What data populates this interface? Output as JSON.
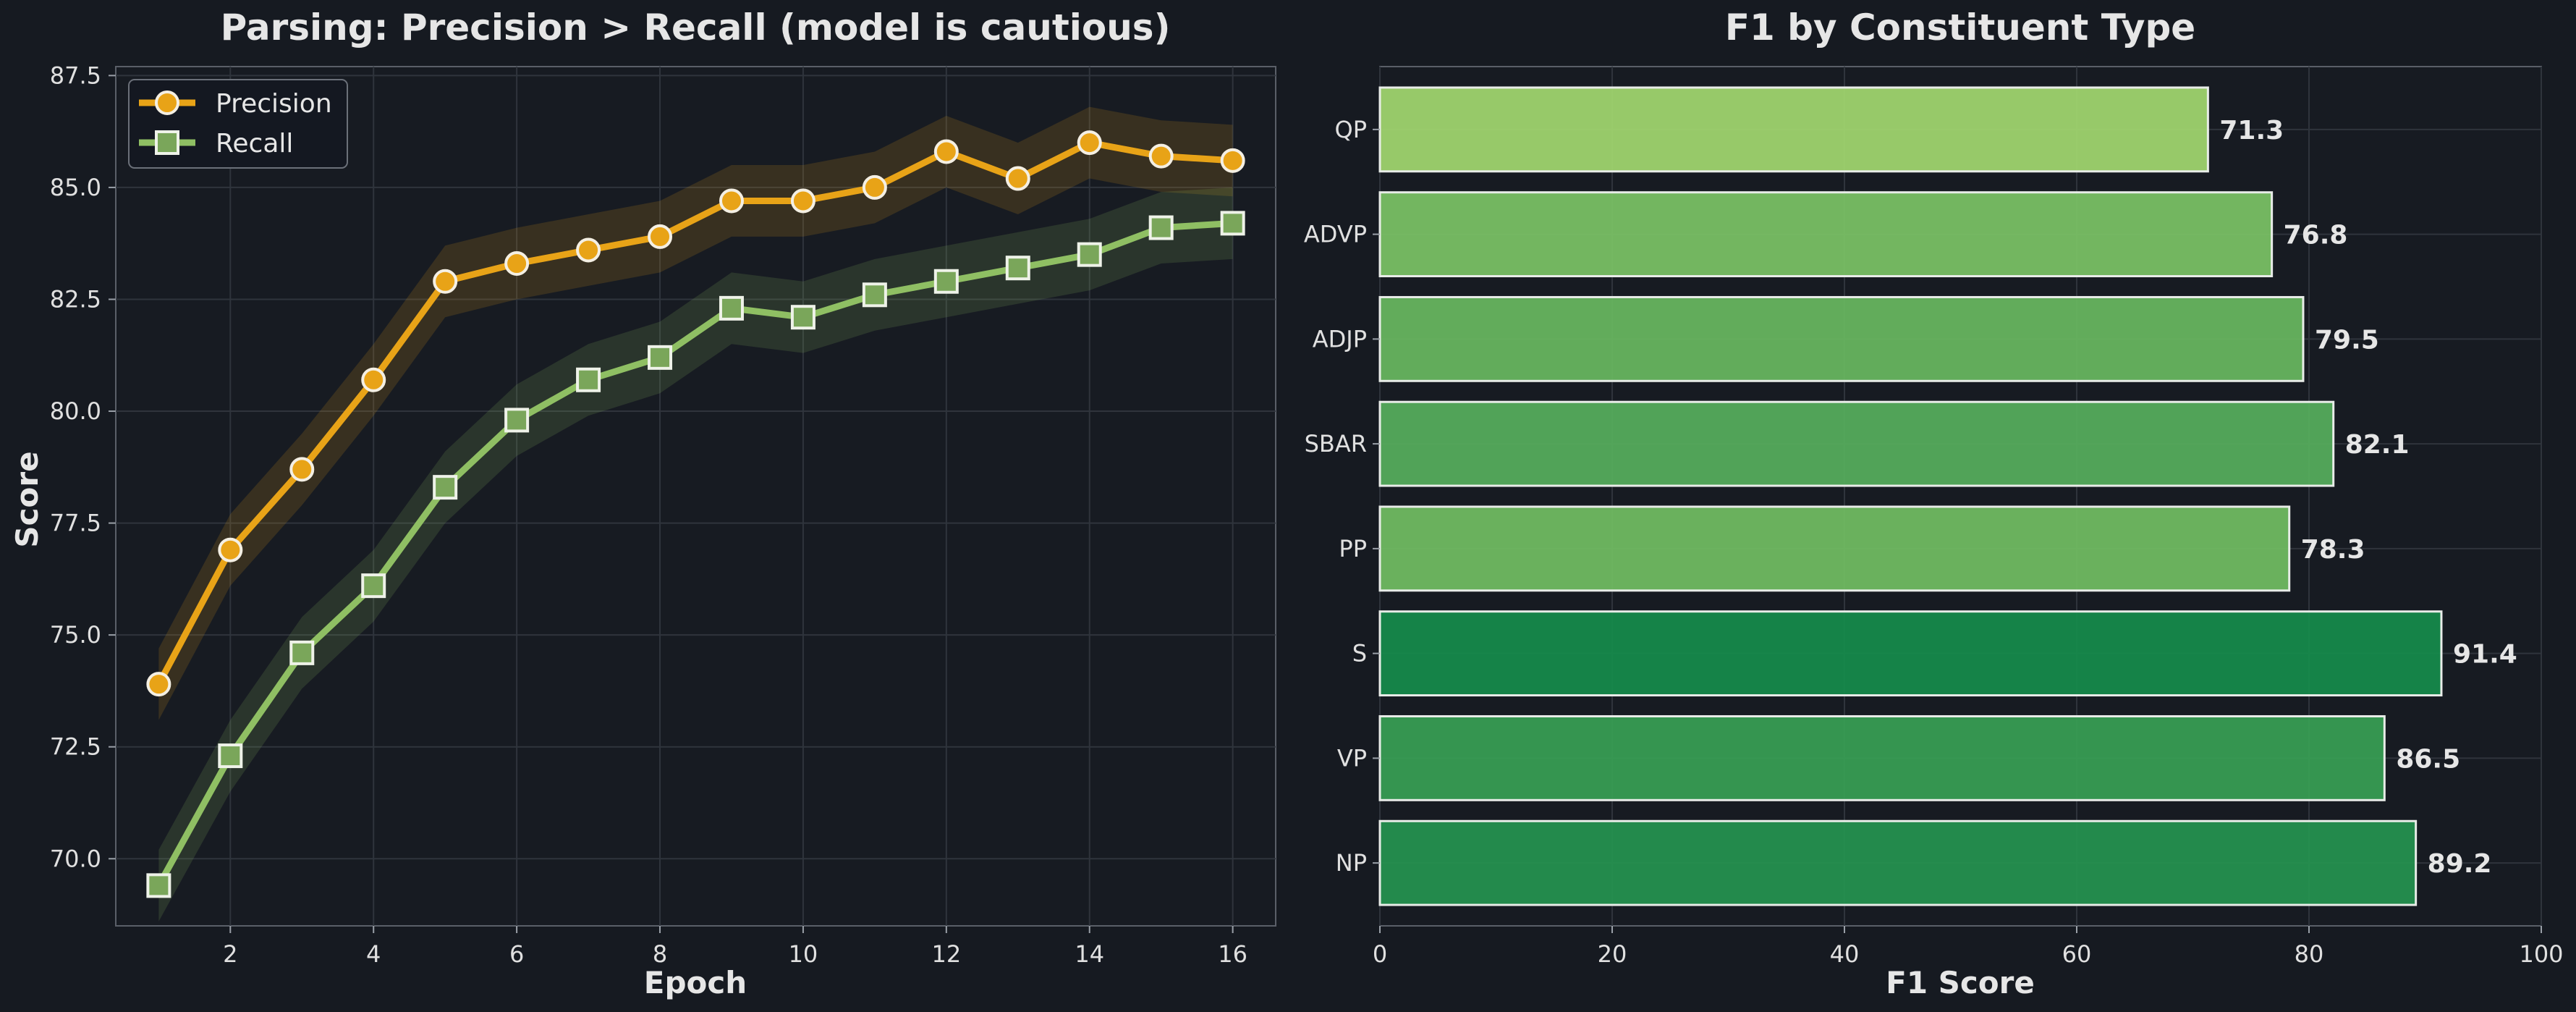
{
  "chart_data": [
    {
      "type": "line",
      "title": "Parsing: Precision > Recall (model is cautious)",
      "xlabel": "Epoch",
      "ylabel": "Score",
      "x": [
        1,
        2,
        3,
        4,
        5,
        6,
        7,
        8,
        9,
        10,
        11,
        12,
        13,
        14,
        15,
        16
      ],
      "xlim": [
        0.4,
        16.6
      ],
      "ylim": [
        68.5,
        87.7
      ],
      "xticks": [
        "2",
        "4",
        "6",
        "8",
        "10",
        "12",
        "14",
        "16"
      ],
      "yticks": [
        "70.0",
        "72.5",
        "75.0",
        "77.5",
        "80.0",
        "82.5",
        "85.0",
        "87.5"
      ],
      "grid": true,
      "legend": "top-left",
      "series": [
        {
          "name": "Precision",
          "color": "#e8a317",
          "marker": "circle",
          "values": [
            73.9,
            76.9,
            78.7,
            80.7,
            82.9,
            83.3,
            83.6,
            83.9,
            84.7,
            84.7,
            85.0,
            85.8,
            85.2,
            86.0,
            85.7,
            85.6
          ],
          "band": 0.8
        },
        {
          "name": "Recall",
          "color": "#8fbf63",
          "marker": "square",
          "values": [
            69.4,
            72.3,
            74.6,
            76.1,
            78.3,
            79.8,
            80.7,
            81.2,
            82.3,
            82.1,
            82.6,
            82.9,
            83.2,
            83.5,
            84.1,
            84.2
          ],
          "band": 0.8
        }
      ]
    },
    {
      "type": "bar",
      "orientation": "horizontal",
      "title": "F1 by Constituent Type",
      "xlabel": "F1 Score",
      "ylabel": "",
      "categories": [
        "NP",
        "VP",
        "S",
        "PP",
        "SBAR",
        "ADJP",
        "ADVP",
        "QP"
      ],
      "values": [
        89.2,
        86.5,
        91.4,
        78.3,
        82.1,
        79.5,
        76.8,
        71.3
      ],
      "value_labels": [
        "89.2",
        "86.5",
        "91.4",
        "78.3",
        "82.1",
        "79.5",
        "76.8",
        "71.3"
      ],
      "xlim": [
        0,
        100
      ],
      "xticks": [
        "0",
        "20",
        "40",
        "60",
        "80",
        "100"
      ],
      "grid": true,
      "colormap": "green gradient (higher value = deeper green)"
    }
  ]
}
